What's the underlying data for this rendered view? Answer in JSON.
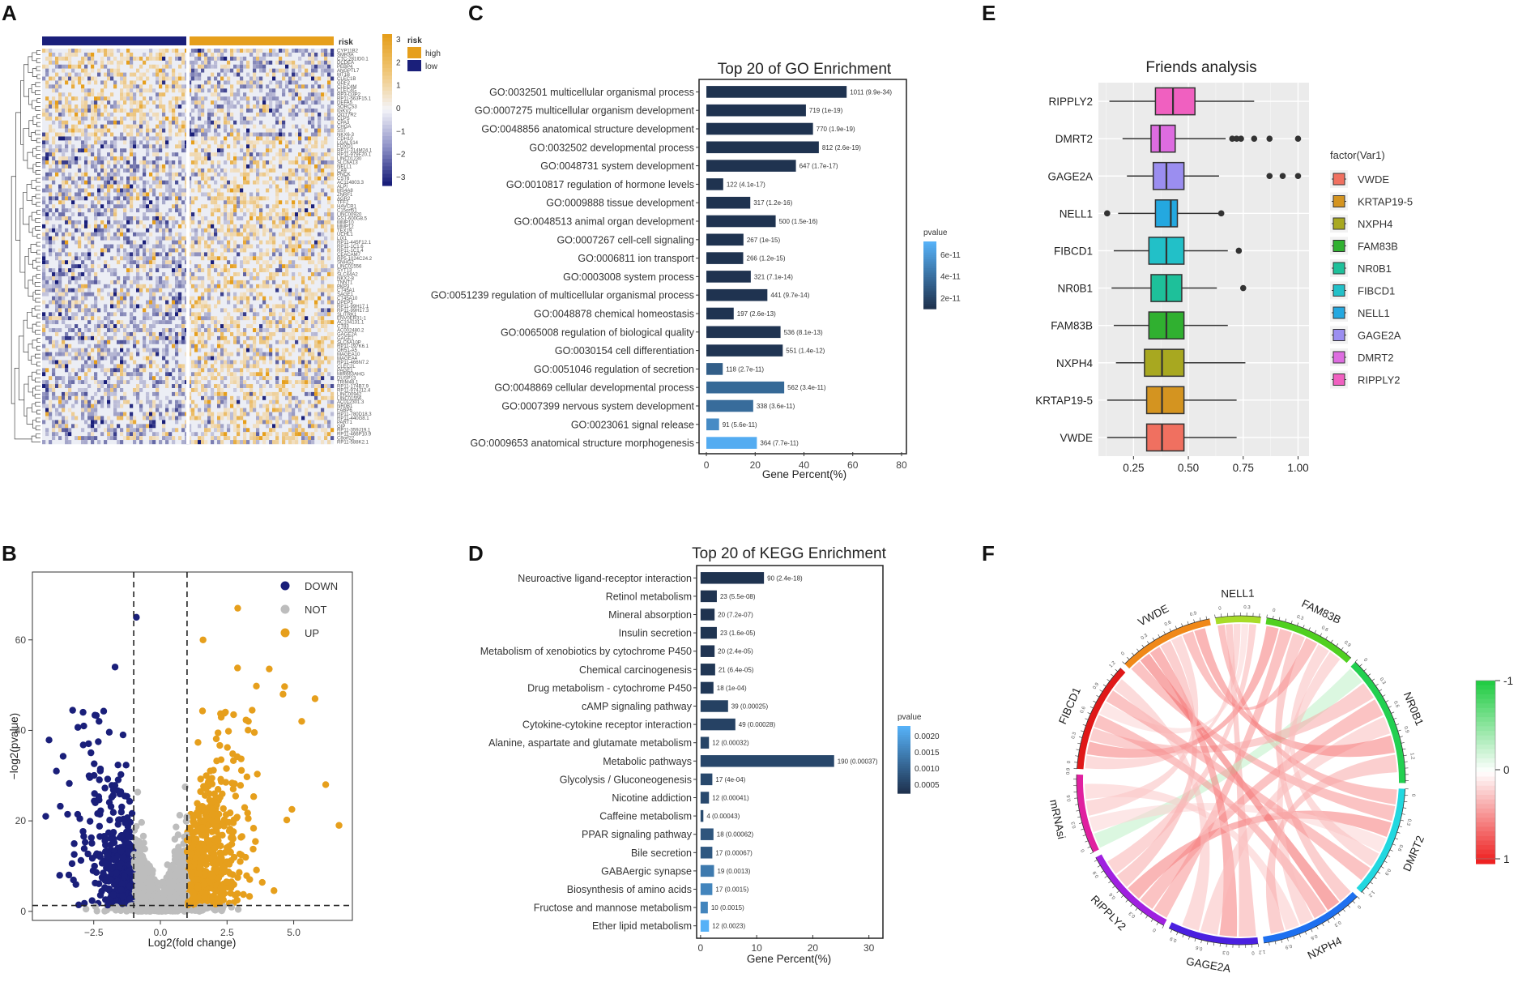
{
  "panels": {
    "A": "A",
    "B": "B",
    "C": "C",
    "D": "D",
    "E": "E",
    "F": "F"
  },
  "colors": {
    "orange": "#e69f1c",
    "navy": "#1a1f7a",
    "grey": "#bdbdbd",
    "bar_dark": "#1f3350",
    "bar_light": "#56b1f7"
  },
  "chart_data": [
    {
      "panel": "A",
      "type": "heatmap",
      "annotation_title": "risk",
      "risk_legend": {
        "title": "risk",
        "items": [
          "high",
          "low"
        ]
      },
      "color_scale": {
        "min": -3,
        "max": 3,
        "ticks": [
          "3",
          "2",
          "1",
          "0",
          "−1",
          "−2",
          "−3"
        ]
      },
      "genes": [
        "CYP11B2",
        "SMR3A",
        "CTC-281ID0.1",
        "DCDEA",
        "PEBP4",
        "ANGPTL7",
        "MT1B",
        "CLEC1B",
        "GDF2",
        "CLEC4M",
        "CLEC4G",
        "RP3-O3P2",
        "RP11-563F15.1",
        "DEFA5",
        "SORCS3",
        "IGKV2",
        "OOT7R2",
        "CLPS",
        "CPA3",
        "CHGA",
        "SST",
        "NKX6-3",
        "CDH10",
        "LGALS14",
        "FOXD1",
        "RP11-314M24.1",
        "RP11-979F20.1",
        "LINC01230",
        "SLC6A13",
        "NELL1",
        "CA9",
        "PNCK",
        "CST6",
        "AC114803.3",
        "ALPI",
        "MS4A8",
        "ZNRF1",
        "AGR2",
        "TFF2",
        "HAVCR1",
        "C15orf51",
        "LINC00920",
        "GS1-600G8.5",
        "MMP10",
        "MMP12",
        "TEX19",
        "UCHL1",
        "LIX1",
        "RP11-445F12.1",
        "RP11-1C1.6",
        "RP11-1C1.4",
        "CEACAM7",
        "RP5-1024C24.2",
        "SNHG2",
        "LINC01556",
        "SYT13",
        "SLC44A2",
        "NKX2-8",
        "TNNT1",
        "PKP3",
        "CT45A1",
        "SAGE1",
        "CT45A10",
        "DPEP3",
        "RP11-99H17.1",
        "RP11-99H17.3",
        "SLITRK1",
        "ENV0ER31-1",
        "AC104131.1",
        "CT83",
        "AC002480.2",
        "GAGE2A",
        "GAGE1",
        "SLC6A10P",
        "RP11-197K6.1",
        "OR51-A5",
        "MAGEA10",
        "MAGEA4",
        "RP11-466N7.2",
        "CLEC2L",
        "PAGE1",
        "MIR663AHG",
        "DUSP13",
        "TRIM48.1",
        "RP11-174B7.9",
        "RP11-974J12.4",
        "LINC00942",
        "LINC01556",
        "AC012301.3",
        "NR0B1",
        "FABP6",
        "RP11-780D18.3",
        "RP11-440G8.1",
        "PART1",
        "GIP",
        "RP11-359J19.1",
        "RP11-466P10.9",
        "C8orf22",
        "RP11-588K2.1"
      ]
    },
    {
      "panel": "B",
      "type": "scatter",
      "xlabel": "Log2(fold change)",
      "ylabel": "−log2(pvalue)",
      "xlim": [
        -4.8,
        7.2
      ],
      "ylim": [
        -2,
        75
      ],
      "xticks": [
        -2.5,
        0.0,
        2.5,
        5.0
      ],
      "xtick_labels": [
        "−2.5",
        "0.0",
        "2.5",
        "5.0"
      ],
      "yticks": [
        0,
        20,
        40,
        60
      ],
      "ytick_labels": [
        "0",
        "20",
        "40",
        "60"
      ],
      "thresholds": {
        "fc": [
          -1,
          1
        ],
        "p": 1.3
      },
      "legend": [
        "DOWN",
        "NOT",
        "UP"
      ],
      "highlights": [
        {
          "x": -0.9,
          "y": 65,
          "g": "DOWN"
        },
        {
          "x": -1.7,
          "y": 54,
          "g": "DOWN"
        },
        {
          "x": -2.9,
          "y": 44,
          "g": "DOWN"
        },
        {
          "x": -2.3,
          "y": 42,
          "g": "DOWN"
        },
        {
          "x": -4.3,
          "y": 21,
          "g": "DOWN"
        },
        {
          "x": -3.9,
          "y": 31,
          "g": "DOWN"
        },
        {
          "x": -1.4,
          "y": 39,
          "g": "DOWN"
        },
        {
          "x": 2.9,
          "y": 67,
          "g": "UP"
        },
        {
          "x": 1.6,
          "y": 60,
          "g": "UP"
        },
        {
          "x": 3.3,
          "y": 42,
          "g": "UP"
        },
        {
          "x": 5.8,
          "y": 47,
          "g": "UP"
        },
        {
          "x": 5.3,
          "y": 42,
          "g": "UP"
        },
        {
          "x": 6.7,
          "y": 19,
          "g": "UP"
        },
        {
          "x": 6.2,
          "y": 28,
          "g": "UP"
        },
        {
          "x": 4.6,
          "y": 48,
          "g": "UP"
        }
      ]
    },
    {
      "panel": "C",
      "type": "bar",
      "orientation": "horizontal",
      "title": "Top 20 of GO Enrichment",
      "xlabel": "Gene Percent(%)",
      "xlim": [
        -3,
        82
      ],
      "xticks": [
        0,
        20,
        40,
        60,
        80
      ],
      "legend": {
        "title": "pvalue",
        "labels": [
          "6e-11",
          "4e-11",
          "2e-11"
        ]
      },
      "categories": [
        "GO:0032501 multicellular organismal process",
        "GO:0007275 multicellular organism development",
        "GO:0048856 anatomical structure development",
        "GO:0032502 developmental process",
        "GO:0048731 system development",
        "GO:0010817 regulation of hormone levels",
        "GO:0009888 tissue development",
        "GO:0048513 animal organ development",
        "GO:0007267 cell-cell signaling",
        "GO:0006811 ion transport",
        "GO:0003008 system process",
        "GO:0051239 regulation of multicellular organismal process",
        "GO:0048878 chemical homeostasis",
        "GO:0065008 regulation of biological quality",
        "GO:0030154 cell differentiation",
        "GO:0051046 regulation of secretion",
        "GO:0048869 cellular developmental process",
        "GO:0007399 nervous system development",
        "GO:0023061 signal release",
        "GO:0009653 anatomical structure morphogenesis"
      ],
      "values": [
        57.5,
        40.8,
        43.7,
        46.1,
        36.7,
        6.9,
        18.0,
        28.4,
        15.2,
        15.1,
        18.2,
        25.0,
        11.2,
        30.4,
        31.3,
        6.7,
        31.9,
        19.2,
        5.2,
        20.7
      ],
      "pvalues": [
        9.9e-34,
        1e-19,
        1.9e-19,
        2.6e-19,
        1.7e-17,
        4.1e-17,
        1.2e-16,
        1.5e-16,
        1e-15,
        1.2e-15,
        7.1e-14,
        9.7e-14,
        2.6e-13,
        8.1e-13,
        1.4e-12,
        2.7e-11,
        3.4e-11,
        3.6e-11,
        5.6e-11,
        7.7e-11
      ],
      "labels": [
        "1011 (9.9e-34)",
        "719 (1e-19)",
        "770 (1.9e-19)",
        "812 (2.6e-19)",
        "647 (1.7e-17)",
        "122 (4.1e-17)",
        "317 (1.2e-16)",
        "500 (1.5e-16)",
        "267 (1e-15)",
        "266 (1.2e-15)",
        "321 (7.1e-14)",
        "441 (9.7e-14)",
        "197 (2.6e-13)",
        "536 (8.1e-13)",
        "551 (1.4e-12)",
        "118 (2.7e-11)",
        "562 (3.4e-11)",
        "338 (3.6e-11)",
        "91 (5.6e-11)",
        "364 (7.7e-11)"
      ]
    },
    {
      "panel": "D",
      "type": "bar",
      "orientation": "horizontal",
      "title": "Top 20 of KEGG Enrichment",
      "xlabel": "Gene Percent(%)",
      "xlim": [
        -0.7,
        32.5
      ],
      "xticks": [
        0,
        10,
        20,
        30
      ],
      "legend": {
        "title": "pvalue",
        "labels": [
          "0.0020",
          "0.0015",
          "0.0010",
          "0.0005"
        ]
      },
      "categories": [
        "Neuroactive ligand-receptor interaction",
        "Retinol metabolism",
        "Mineral absorption",
        "Insulin secretion",
        "Metabolism of xenobiotics by cytochrome P450",
        "Chemical carcinogenesis",
        "Drug metabolism - cytochrome P450",
        "cAMP signaling pathway",
        "Cytokine-cytokine receptor interaction",
        "Alanine, aspartate and glutamate metabolism",
        "Metabolic pathways",
        "Glycolysis / Gluconeogenesis",
        "Nicotine addiction",
        "Caffeine metabolism",
        "PPAR signaling pathway",
        "Bile secretion",
        "GABAergic synapse",
        "Biosynthesis of amino acids",
        "Fructose and mannose metabolism",
        "Ether lipid metabolism"
      ],
      "values": [
        11.3,
        2.9,
        2.5,
        2.9,
        2.5,
        2.6,
        2.3,
        4.9,
        6.2,
        1.5,
        23.8,
        2.1,
        1.5,
        0.5,
        2.3,
        2.1,
        2.4,
        2.1,
        1.3,
        1.5
      ],
      "pvalues": [
        2.4e-18,
        5.5e-08,
        7.2e-07,
        1.6e-05,
        2.4e-05,
        6.4e-05,
        0.0001,
        0.00025,
        0.00028,
        0.00032,
        0.00037,
        0.0004,
        0.00041,
        0.00043,
        0.00062,
        0.00067,
        0.0013,
        0.0015,
        0.0015,
        0.0023
      ],
      "labels": [
        "90 (2.4e-18)",
        "23 (5.5e-08)",
        "20 (7.2e-07)",
        "23 (1.6e-05)",
        "20 (2.4e-05)",
        "21 (6.4e-05)",
        "18 (1e-04)",
        "39 (0.00025)",
        "49 (0.00028)",
        "12 (0.00032)",
        "190 (0.00037)",
        "17 (4e-04)",
        "12 (0.00041)",
        "4 (0.00043)",
        "18 (0.00062)",
        "17 (0.00067)",
        "19 (0.0013)",
        "17 (0.0015)",
        "10 (0.0015)",
        "12 (0.0023)"
      ]
    },
    {
      "panel": "E",
      "type": "boxplot",
      "title": "Friends analysis",
      "xlim": [
        0.09,
        1.05
      ],
      "xticks": [
        0.25,
        0.5,
        0.75,
        1.0
      ],
      "xtick_labels": [
        "0.25",
        "0.50",
        "0.75",
        "1.00"
      ],
      "legend_title": "factor(Var1)",
      "legend_order": [
        "VWDE",
        "KRTAP19-5",
        "NXPH4",
        "FAM83B",
        "NR0B1",
        "FIBCD1",
        "NELL1",
        "GAGE2A",
        "DMRT2",
        "RIPPLY2"
      ],
      "rows": [
        {
          "name": "RIPPLY2",
          "color": "#f060c0",
          "q": [
            0.14,
            0.35,
            0.43,
            0.53,
            0.8
          ],
          "outliers": []
        },
        {
          "name": "DMRT2",
          "color": "#dd6ce0",
          "q": [
            0.2,
            0.33,
            0.37,
            0.44,
            0.67
          ],
          "outliers": [
            0.7,
            0.72,
            0.74,
            0.8,
            0.87,
            1.0
          ]
        },
        {
          "name": "GAGE2A",
          "color": "#9b8ef0",
          "q": [
            0.22,
            0.34,
            0.4,
            0.48,
            0.64
          ],
          "outliers": [
            0.87,
            0.93,
            1.0
          ]
        },
        {
          "name": "NELL1",
          "color": "#24a8e0",
          "q": [
            0.18,
            0.35,
            0.42,
            0.45,
            0.64
          ],
          "outliers": [
            0.13,
            0.65
          ]
        },
        {
          "name": "FIBCD1",
          "color": "#22c0c8",
          "q": [
            0.16,
            0.32,
            0.4,
            0.48,
            0.68
          ],
          "outliers": [
            0.73
          ]
        },
        {
          "name": "NR0B1",
          "color": "#1ec09a",
          "q": [
            0.15,
            0.33,
            0.4,
            0.47,
            0.63
          ],
          "outliers": [
            0.75
          ]
        },
        {
          "name": "FAM83B",
          "color": "#30b030",
          "q": [
            0.16,
            0.32,
            0.4,
            0.48,
            0.68
          ],
          "outliers": []
        },
        {
          "name": "NXPH4",
          "color": "#a8a820",
          "q": [
            0.17,
            0.3,
            0.38,
            0.48,
            0.76
          ],
          "outliers": []
        },
        {
          "name": "KRTAP19-5",
          "color": "#d49420",
          "q": [
            0.13,
            0.31,
            0.38,
            0.48,
            0.72
          ],
          "outliers": []
        },
        {
          "name": "VWDE",
          "color": "#f07060",
          "q": [
            0.13,
            0.31,
            0.38,
            0.48,
            0.72
          ],
          "outliers": []
        }
      ]
    },
    {
      "panel": "F",
      "type": "chord",
      "sectors": [
        {
          "name": "NELL1",
          "color": "#a8dc28",
          "start": -9,
          "end": 7
        },
        {
          "name": "FAM83B",
          "color": "#50d020",
          "start": 9,
          "end": 42
        },
        {
          "name": "NR0B1",
          "color": "#22d050",
          "start": 44,
          "end": 91
        },
        {
          "name": "DMRT2",
          "color": "#22d8e0",
          "start": 93,
          "end": 133
        },
        {
          "name": "NXPH4",
          "color": "#1e70f0",
          "start": 135,
          "end": 172
        },
        {
          "name": "GAGE2A",
          "color": "#4a20e0",
          "start": 174,
          "end": 206
        },
        {
          "name": "RIPPLY2",
          "color": "#a020e0",
          "start": 208,
          "end": 242
        },
        {
          "name": "mRNAsi",
          "color": "#e020a0",
          "start": 244,
          "end": 272
        },
        {
          "name": "FIBCD1",
          "color": "#e01818",
          "start": 274,
          "end": 313
        },
        {
          "name": "VWDE",
          "color": "#f08818",
          "start": 315,
          "end": 349
        }
      ],
      "tick_labels": [
        "0",
        "0.3",
        "0.6",
        "0.9",
        "1.2"
      ],
      "color_scale": {
        "labels": [
          "-1",
          "0",
          "1"
        ]
      },
      "links": [
        {
          "a": 0,
          "b": 3,
          "v": 0.5
        },
        {
          "a": 0,
          "b": 5,
          "v": 0.4
        },
        {
          "a": 0,
          "b": 8,
          "v": 0.3
        },
        {
          "a": 1,
          "b": 8,
          "v": 0.6
        },
        {
          "a": 1,
          "b": 6,
          "v": 0.5
        },
        {
          "a": 1,
          "b": 4,
          "v": 0.4
        },
        {
          "a": 2,
          "b": 7,
          "v": -0.3
        },
        {
          "a": 2,
          "b": 8,
          "v": 0.4
        },
        {
          "a": 2,
          "b": 6,
          "v": 0.5
        },
        {
          "a": 3,
          "b": 9,
          "v": 0.5
        },
        {
          "a": 3,
          "b": 6,
          "v": 0.6
        },
        {
          "a": 3,
          "b": 7,
          "v": 0.2
        },
        {
          "a": 4,
          "b": 9,
          "v": 0.7
        },
        {
          "a": 4,
          "b": 8,
          "v": 0.5
        },
        {
          "a": 5,
          "b": 9,
          "v": 0.6
        },
        {
          "a": 5,
          "b": 2,
          "v": 0.3
        },
        {
          "a": 6,
          "b": 9,
          "v": 0.4
        },
        {
          "a": 7,
          "b": 9,
          "v": 0.3
        },
        {
          "a": 8,
          "b": 0,
          "v": 0.2
        },
        {
          "a": 9,
          "b": 1,
          "v": 0.5
        },
        {
          "a": 9,
          "b": 2,
          "v": 0.6
        },
        {
          "a": 1,
          "b": 3,
          "v": 0.3
        },
        {
          "a": 4,
          "b": 1,
          "v": 0.3
        },
        {
          "a": 7,
          "b": 4,
          "v": 0.25
        },
        {
          "a": 8,
          "b": 3,
          "v": 0.5
        },
        {
          "a": 6,
          "b": 0,
          "v": 0.35
        },
        {
          "a": 5,
          "b": 8,
          "v": 0.3
        },
        {
          "a": 2,
          "b": 4,
          "v": 0.4
        }
      ]
    }
  ]
}
